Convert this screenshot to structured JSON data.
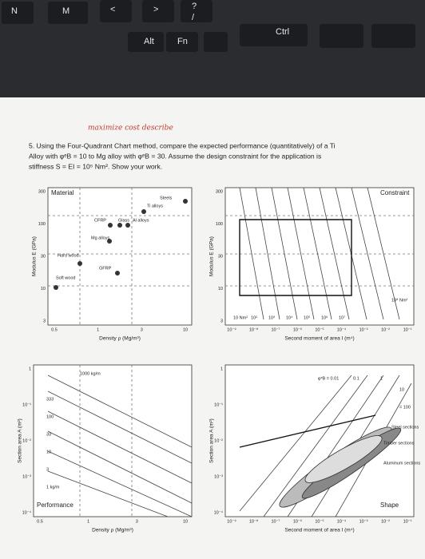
{
  "keyboard": {
    "keys": [
      "N",
      "M",
      "<",
      ">",
      "?",
      "/",
      "Alt",
      "Fn",
      "Ctrl"
    ]
  },
  "handwriting": "maximize cost describe",
  "question": [
    "5. Using the Four-Quadrant Chart method, compare the expected performance (quantitatively) of a Ti",
    "Alloy with φᵉB = 10 to Mg alloy with φᵉB = 30.  Assume the design constraint for the application is",
    "stiffness S = EI = 10⁵ Nm².  Show your work."
  ],
  "top_left": {
    "label": "Material",
    "yticks": [
      "300",
      "100",
      "30",
      "10",
      "3"
    ],
    "xticks": [
      "0.5",
      "1",
      "3",
      "10"
    ],
    "x_label": "Density ρ (Mg/m³)",
    "y_label": "Modulus E (GPa)",
    "materials": [
      "Steels",
      "Ti alloys",
      "CFRP",
      "Glass",
      "Al alloys",
      "Mg alloys",
      "Hard wood",
      "GFRP",
      "Soft wood"
    ]
  },
  "top_right": {
    "label": "Constraint",
    "yticks": [
      "300",
      "100",
      "30",
      "10",
      "3"
    ],
    "xticks": [
      "10⁻⁹",
      "10⁻⁸",
      "10⁻⁷",
      "10⁻⁶",
      "10⁻⁵",
      "10⁻⁴",
      "10⁻³",
      "10⁻²",
      "10⁻¹"
    ],
    "x_label": "Second moment of area I (m⁴)",
    "y_label": "Modulus E (GPa)",
    "contours": [
      "10 Nm²",
      "10²",
      "10³",
      "10⁴",
      "10⁵",
      "10⁶",
      "10⁷",
      "10⁸ Nm²"
    ]
  },
  "bottom_left": {
    "label": "Performance",
    "yticks": [
      "1",
      "10⁻¹",
      "10⁻²",
      "10⁻³",
      "10⁻⁴"
    ],
    "xticks": [
      "0.5",
      "1",
      "3",
      "10"
    ],
    "x_label": "Density ρ (Mg/m³)",
    "y_label": "Section area A (m²)",
    "contours": [
      "1000 kg/m",
      "333",
      "100",
      "33",
      "10",
      "3",
      "1 kg/m"
    ]
  },
  "bottom_right": {
    "label": "Shape",
    "yticks": [
      "1",
      "10⁻¹",
      "10⁻²",
      "10⁻³",
      "10⁻⁴"
    ],
    "xticks": [
      "10⁻⁹",
      "10⁻⁸",
      "10⁻⁷",
      "10⁻⁶",
      "10⁻⁵",
      "10⁻⁴",
      "10⁻³",
      "10⁻²",
      "10⁻¹"
    ],
    "x_label": "Second moment of area I (m⁴)",
    "y_label": "Section area A (m²)",
    "contours": [
      "φᵉB = 0.01",
      "0.1",
      "1",
      "10",
      "= 100"
    ],
    "regions": [
      "Steel sections",
      "Timber sections",
      "Aluminum sections"
    ]
  }
}
